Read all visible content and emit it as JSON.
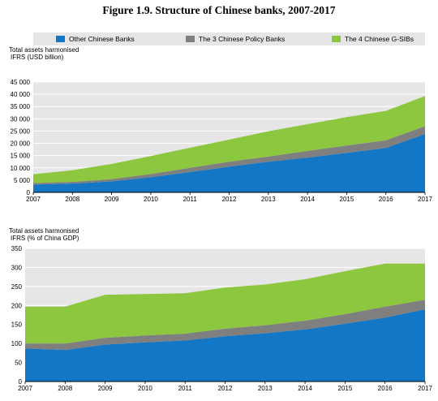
{
  "title": "Figure 1.9. Structure of Chinese banks, 2007-2017",
  "legend": [
    {
      "label": "Other Chinese Banks",
      "color": "#1477c6"
    },
    {
      "label": "The 3 Chinese Policy Banks",
      "color": "#7f7f7f"
    },
    {
      "label": "The 4 Chinese G-SIBs",
      "color": "#8dc63f"
    }
  ],
  "chart_data": [
    {
      "type": "area",
      "stacked": true,
      "ylabel_lines": [
        "Total assets harmonised",
        "IFRS (USD billion)"
      ],
      "x": [
        "2007",
        "2008",
        "2009",
        "2010",
        "2011",
        "2012",
        "2013",
        "2014",
        "2015",
        "2016",
        "2017"
      ],
      "ylim": [
        0,
        45000
      ],
      "yticks": [
        0,
        5000,
        10000,
        15000,
        20000,
        25000,
        30000,
        35000,
        40000,
        45000
      ],
      "ytick_labels": [
        "0",
        "5 000",
        "10 000",
        "15 000",
        "20 000",
        "25 000",
        "30 000",
        "35 000",
        "40 000",
        "45 000"
      ],
      "grid": true,
      "series": [
        {
          "name": "Other Chinese Banks",
          "values": [
            3200,
            3600,
            4500,
            6200,
            8300,
            10500,
            12500,
            14200,
            16100,
            18100,
            23800
          ]
        },
        {
          "name": "The 3 Chinese Policy Banks",
          "values": [
            600,
            700,
            900,
            1300,
            1700,
            2000,
            2100,
            2700,
            3000,
            3100,
            3200
          ]
        },
        {
          "name": "The 4 Chinese G-SIBs",
          "values": [
            3600,
            4700,
            6200,
            7300,
            8200,
            9000,
            10300,
            10900,
            11600,
            12000,
            12300
          ]
        }
      ]
    },
    {
      "type": "area",
      "stacked": true,
      "ylabel_lines": [
        "Total assets harmonised",
        "IFRS (% of China GDP)"
      ],
      "x": [
        "2007",
        "2008",
        "2009",
        "2010",
        "2011",
        "2012",
        "2013",
        "2014",
        "2015",
        "2016",
        "2017"
      ],
      "ylim": [
        0,
        350
      ],
      "yticks": [
        0,
        50,
        100,
        150,
        200,
        250,
        300,
        350
      ],
      "ytick_labels": [
        "0",
        "50",
        "100",
        "150",
        "200",
        "250",
        "300",
        "350"
      ],
      "grid": true,
      "series": [
        {
          "name": "Other Chinese Banks",
          "values": [
            87,
            83,
            97,
            103,
            108,
            119,
            127,
            137,
            152,
            168,
            190
          ]
        },
        {
          "name": "The 3 Chinese Policy Banks",
          "values": [
            13,
            17,
            18,
            18,
            18,
            20,
            21,
            23,
            25,
            29,
            25
          ]
        },
        {
          "name": "The 4 Chinese G-SIBs",
          "values": [
            97,
            97,
            113,
            109,
            106,
            108,
            107,
            109,
            113,
            113,
            95
          ]
        }
      ]
    }
  ]
}
